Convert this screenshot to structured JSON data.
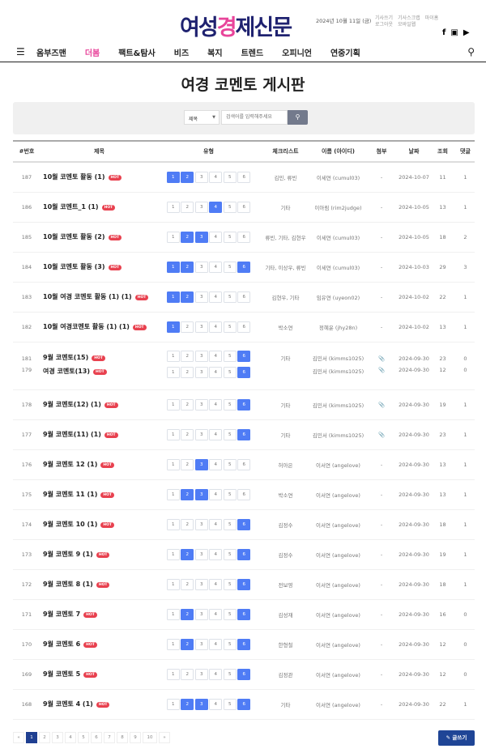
{
  "header": {
    "logo": [
      "여성",
      "경",
      "제신문"
    ],
    "date": "2024년 10월 11일 (금)",
    "links": [
      "기사쓰기",
      "기사스크랩",
      "마이홈",
      "로그아웃",
      "모바일웹"
    ],
    "social": [
      "f",
      "▣",
      "▶"
    ]
  },
  "nav": {
    "items": [
      "옴부즈맨",
      "더봄",
      "팩트&탐사",
      "비즈",
      "복지",
      "트렌드",
      "오피니언",
      "연중기획"
    ],
    "active": 1
  },
  "page": {
    "title": "여경 코멘토 게시판"
  },
  "search": {
    "select": "제목",
    "placeholder": "검색어를 입력해주세요",
    "button": "⚲"
  },
  "table": {
    "headers": [
      "#번호",
      "제목",
      "유형",
      "체크리스트",
      "이름 (아이디)",
      "첨부",
      "날짜",
      "조회",
      "댓글"
    ],
    "rows": [
      {
        "no": "187",
        "title": "10월 코멘토 활동 (1)",
        "types": [
          1,
          2
        ],
        "check": "김민, 류빈",
        "name": "이세연 (cumul03)",
        "file": "-",
        "date": "2024-10-07",
        "views": "11",
        "comments": "1"
      },
      {
        "no": "186",
        "title": "10월 코멘트_1 (1)",
        "types": [
          4
        ],
        "check": "기타",
        "name": "이아림 (rim2judge)",
        "file": "-",
        "date": "2024-10-05",
        "views": "13",
        "comments": "1"
      },
      {
        "no": "185",
        "title": "10월 코멘토 활동 (2)",
        "types": [
          2,
          3
        ],
        "check": "류빈, 기타, 김현우",
        "name": "이세연 (cumul03)",
        "file": "-",
        "date": "2024-10-05",
        "views": "18",
        "comments": "2"
      },
      {
        "no": "184",
        "title": "10월 코멘토 활동 (3)",
        "types": [
          1,
          2,
          6
        ],
        "check": "기타, 이상우, 류빈",
        "name": "이세연 (cumul03)",
        "file": "-",
        "date": "2024-10-03",
        "views": "29",
        "comments": "3"
      },
      {
        "no": "183",
        "title": "10월 여경 코멘토 활동 (1) (1)",
        "types": [
          1,
          2
        ],
        "check": "김현우, 기타",
        "name": "임유연 (uyeon02)",
        "file": "-",
        "date": "2024-10-02",
        "views": "22",
        "comments": "1"
      },
      {
        "no": "182",
        "title": "10월 여경코멘토 활동 (1) (1)",
        "types": [
          1
        ],
        "check": "박소연",
        "name": "정혜윤 (jhy28n)",
        "file": "-",
        "date": "2024-10-02",
        "views": "13",
        "comments": "1"
      },
      {
        "no": "181",
        "title": "9월 코멘토(15)",
        "types": [
          6
        ],
        "check": "기타",
        "name": "김민서 (kimms1025)",
        "file": "📎",
        "date": "2024-09-30",
        "views": "23",
        "comments": "0",
        "group": 1
      },
      {
        "no": "179",
        "title": "여경 코멘토(13)",
        "types": [
          6
        ],
        "check": "",
        "name": "김민서 (kimms1025)",
        "file": "📎",
        "date": "2024-09-30",
        "views": "12",
        "comments": "0",
        "group": 2
      },
      {
        "no": "178",
        "title": "9월 코멘토(12) (1)",
        "types": [
          6
        ],
        "check": "기타",
        "name": "김민서 (kimms1025)",
        "file": "📎",
        "date": "2024-09-30",
        "views": "19",
        "comments": "1"
      },
      {
        "no": "177",
        "title": "9월 코멘토(11) (1)",
        "types": [
          6
        ],
        "check": "기타",
        "name": "김민서 (kimms1025)",
        "file": "📎",
        "date": "2024-09-30",
        "views": "23",
        "comments": "1"
      },
      {
        "no": "176",
        "title": "9월 코멘토 12 (1)",
        "types": [
          3
        ],
        "check": "허아은",
        "name": "이서연 (angelove)",
        "file": "-",
        "date": "2024-09-30",
        "views": "13",
        "comments": "1"
      },
      {
        "no": "175",
        "title": "9월 코멘토 11 (1)",
        "types": [
          2,
          3
        ],
        "check": "박소연",
        "name": "이서연 (angelove)",
        "file": "-",
        "date": "2024-09-30",
        "views": "13",
        "comments": "1"
      },
      {
        "no": "174",
        "title": "9월 코멘토 10 (1)",
        "types": [
          6
        ],
        "check": "김정수",
        "name": "이서연 (angelove)",
        "file": "-",
        "date": "2024-09-30",
        "views": "18",
        "comments": "1"
      },
      {
        "no": "173",
        "title": "9월 코멘토 9 (1)",
        "types": [
          2,
          6
        ],
        "check": "김정수",
        "name": "이서연 (angelove)",
        "file": "-",
        "date": "2024-09-30",
        "views": "19",
        "comments": "1"
      },
      {
        "no": "172",
        "title": "9월 코멘토 8 (1)",
        "types": [
          6
        ],
        "check": "전보영",
        "name": "이서연 (angelove)",
        "file": "-",
        "date": "2024-09-30",
        "views": "18",
        "comments": "1"
      },
      {
        "no": "171",
        "title": "9월 코멘토 7",
        "types": [
          2,
          6
        ],
        "check": "김성재",
        "name": "이서연 (angelove)",
        "file": "-",
        "date": "2024-09-30",
        "views": "16",
        "comments": "0"
      },
      {
        "no": "170",
        "title": "9월 코멘토 6",
        "types": [
          2,
          6
        ],
        "check": "한형철",
        "name": "이서연 (angelove)",
        "file": "-",
        "date": "2024-09-30",
        "views": "12",
        "comments": "0"
      },
      {
        "no": "169",
        "title": "9월 코멘토 5",
        "types": [
          6
        ],
        "check": "김정관",
        "name": "이서연 (angelove)",
        "file": "-",
        "date": "2024-09-30",
        "views": "12",
        "comments": "0"
      },
      {
        "no": "168",
        "title": "9월 코멘토 4 (1)",
        "types": [
          2,
          3,
          6
        ],
        "check": "기타",
        "name": "이서연 (angelove)",
        "file": "-",
        "date": "2024-09-30",
        "views": "22",
        "comments": "1"
      }
    ],
    "hot": "HOT",
    "type_labels": [
      "1",
      "2",
      "3",
      "4",
      "5",
      "6"
    ]
  },
  "pagination": {
    "prev": "«",
    "pages": [
      "1",
      "2",
      "3",
      "4",
      "5",
      "6",
      "7",
      "8",
      "9",
      "10"
    ],
    "current": "1",
    "next": "»"
  },
  "write_button": "✎ 글쓰기",
  "colors": {
    "brand_navy": "#1f2270",
    "brand_pink": "#e8449a",
    "type_active": "#4f7cf5",
    "hot": "#e8414f",
    "write": "#1f4596"
  }
}
